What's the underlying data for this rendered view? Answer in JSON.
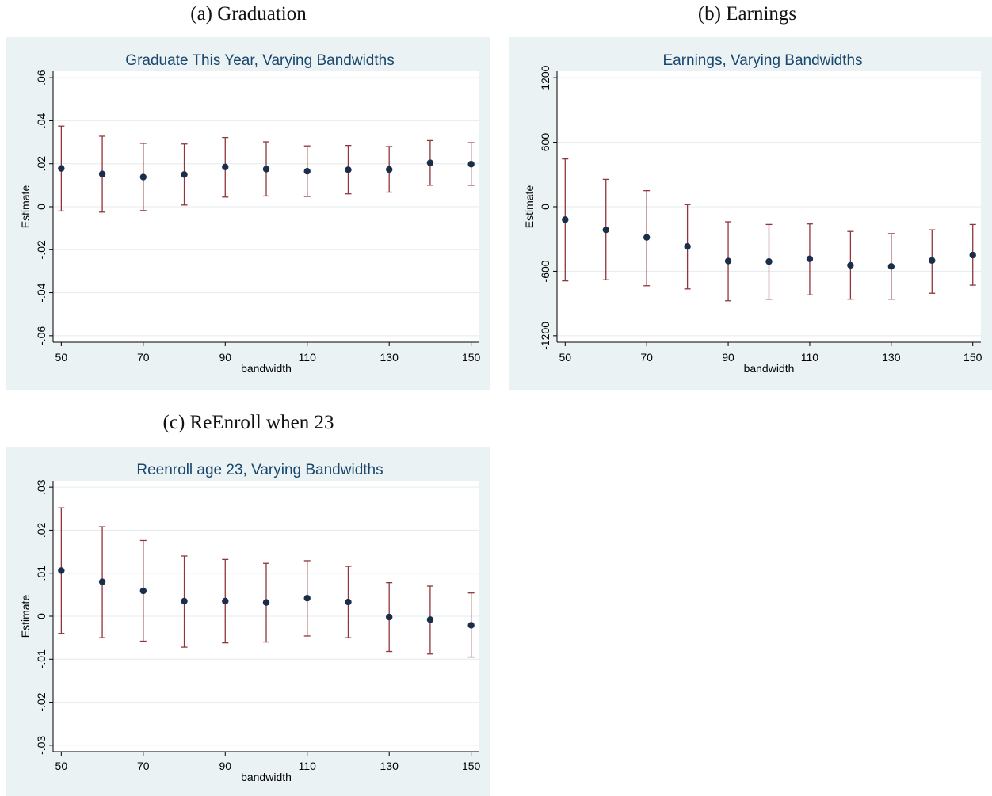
{
  "captions": {
    "a": "(a) Graduation",
    "b": "(b) Earnings",
    "c": "(c) ReEnroll when 23"
  },
  "colors": {
    "panel_bg": "#eaf2f3",
    "plot_bg": "#ffffff",
    "grid": "#e3ebee",
    "title": "#1a476f",
    "ci": "#90353b",
    "point": "#1a2e4a",
    "axis": "#000000"
  },
  "chart_data": [
    {
      "type": "scatter",
      "title": "Graduate This Year, Varying Bandwidths",
      "xlabel": "bandwidth",
      "ylabel": "Estimate",
      "x": [
        50,
        60,
        70,
        80,
        90,
        100,
        110,
        120,
        130,
        140,
        150
      ],
      "estimate": [
        0.0178,
        0.0152,
        0.0138,
        0.015,
        0.0185,
        0.0175,
        0.0165,
        0.0172,
        0.0173,
        0.0204,
        0.0198
      ],
      "ci_low": [
        -0.002,
        -0.0025,
        -0.0018,
        0.0008,
        0.0045,
        0.005,
        0.0048,
        0.006,
        0.0068,
        0.01,
        0.01
      ],
      "ci_high": [
        0.0375,
        0.0328,
        0.0295,
        0.0292,
        0.0322,
        0.0302,
        0.0283,
        0.0285,
        0.028,
        0.0308,
        0.0298
      ],
      "xlim": [
        48,
        152
      ],
      "ylim": [
        -0.063,
        0.063
      ],
      "xticks": [
        50,
        70,
        90,
        110,
        130,
        150
      ],
      "xtick_labels": [
        "50",
        "70",
        "90",
        "110",
        "130",
        "150"
      ],
      "yticks": [
        0.06,
        0.04,
        0.02,
        0,
        -0.02,
        -0.04,
        -0.06
      ],
      "ytick_labels": [
        ".06",
        ".04",
        ".02",
        "0",
        "-.02",
        "-.04",
        "-.06"
      ],
      "grid": true,
      "legend": "none"
    },
    {
      "type": "scatter",
      "title": "Earnings, Varying Bandwidths",
      "xlabel": "bandwidth",
      "ylabel": "Estimate",
      "x": [
        50,
        60,
        70,
        80,
        90,
        100,
        110,
        120,
        130,
        140,
        150
      ],
      "estimate": [
        -120,
        -215,
        -285,
        -370,
        -505,
        -510,
        -485,
        -545,
        -555,
        -500,
        -450
      ],
      "ci_low": [
        -690,
        -680,
        -735,
        -765,
        -875,
        -860,
        -820,
        -860,
        -860,
        -805,
        -730
      ],
      "ci_high": [
        445,
        255,
        150,
        20,
        -140,
        -165,
        -160,
        -230,
        -250,
        -215,
        -165
      ],
      "xlim": [
        48,
        152
      ],
      "ylim": [
        -1260,
        1260
      ],
      "xticks": [
        50,
        70,
        90,
        110,
        130,
        150
      ],
      "xtick_labels": [
        "50",
        "70",
        "90",
        "110",
        "130",
        "150"
      ],
      "yticks": [
        1200,
        600,
        0,
        -600,
        -1200
      ],
      "ytick_labels": [
        "1200",
        "600",
        "0",
        "-600",
        "-1200"
      ],
      "grid": true,
      "legend": "none"
    },
    {
      "type": "scatter",
      "title": "Reenroll age 23, Varying Bandwidths",
      "xlabel": "bandwidth",
      "ylabel": "Estimate",
      "x": [
        50,
        60,
        70,
        80,
        90,
        100,
        110,
        120,
        130,
        140,
        150
      ],
      "estimate": [
        0.0106,
        0.008,
        0.0059,
        0.0035,
        0.0035,
        0.0032,
        0.0042,
        0.0033,
        -0.0002,
        -0.0008,
        -0.0021
      ],
      "ci_low": [
        -0.004,
        -0.005,
        -0.0058,
        -0.0072,
        -0.0062,
        -0.006,
        -0.0046,
        -0.005,
        -0.0082,
        -0.0088,
        -0.0095
      ],
      "ci_high": [
        0.0252,
        0.0208,
        0.0176,
        0.014,
        0.0132,
        0.0123,
        0.0129,
        0.0116,
        0.0078,
        0.007,
        0.0054
      ],
      "xlim": [
        48,
        152
      ],
      "ylim": [
        -0.0315,
        0.0315
      ],
      "xticks": [
        50,
        70,
        90,
        110,
        130,
        150
      ],
      "xtick_labels": [
        "50",
        "70",
        "90",
        "110",
        "130",
        "150"
      ],
      "yticks": [
        0.03,
        0.02,
        0.01,
        0,
        -0.01,
        -0.02,
        -0.03
      ],
      "ytick_labels": [
        ".03",
        ".02",
        ".01",
        "0",
        "-.01",
        "-.02",
        "-.03"
      ],
      "grid": true,
      "legend": "none"
    }
  ]
}
